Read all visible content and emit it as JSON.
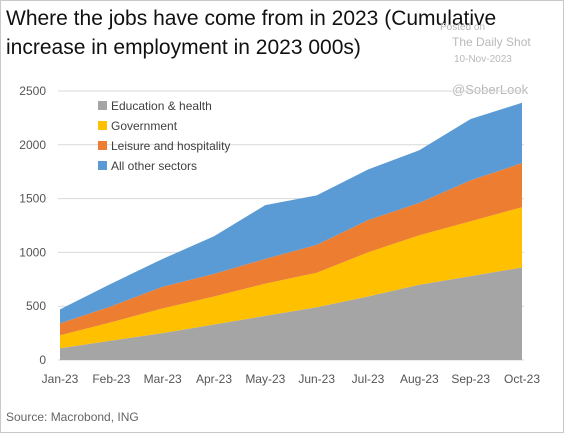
{
  "header": {
    "title": "Where the jobs have come from in 2023 (Cumulative increase in employment in 2023 000s)"
  },
  "watermark": {
    "posted_on": "Posted on",
    "publisher": "The Daily Shot",
    "date": "10-Nov-2023",
    "handle": "@SoberLook"
  },
  "footer": {
    "source": "Source: Macrobond, ING"
  },
  "chart_data": {
    "type": "area",
    "stacked": true,
    "categories": [
      "Jan-23",
      "Feb-23",
      "Mar-23",
      "Apr-23",
      "May-23",
      "Jun-23",
      "Jul-23",
      "Aug-23",
      "Sep-23",
      "Oct-23"
    ],
    "ylim": [
      0,
      2500
    ],
    "yticks": [
      0,
      500,
      1000,
      1500,
      2000,
      2500
    ],
    "grid": "horizontal",
    "legend_position": "top-left",
    "series": [
      {
        "name": "Education & health",
        "color": "#a5a5a5",
        "values": [
          110,
          180,
          250,
          330,
          410,
          490,
          590,
          700,
          780,
          860
        ]
      },
      {
        "name": "Government",
        "color": "#ffc000",
        "values": [
          120,
          170,
          230,
          260,
          300,
          320,
          410,
          460,
          510,
          560
        ]
      },
      {
        "name": "Leisure and hospitality",
        "color": "#ed7d31",
        "values": [
          110,
          150,
          200,
          210,
          230,
          260,
          300,
          300,
          380,
          410
        ]
      },
      {
        "name": "All other sectors",
        "color": "#5b9bd5",
        "values": [
          130,
          210,
          260,
          350,
          500,
          460,
          470,
          490,
          570,
          560
        ]
      }
    ]
  }
}
